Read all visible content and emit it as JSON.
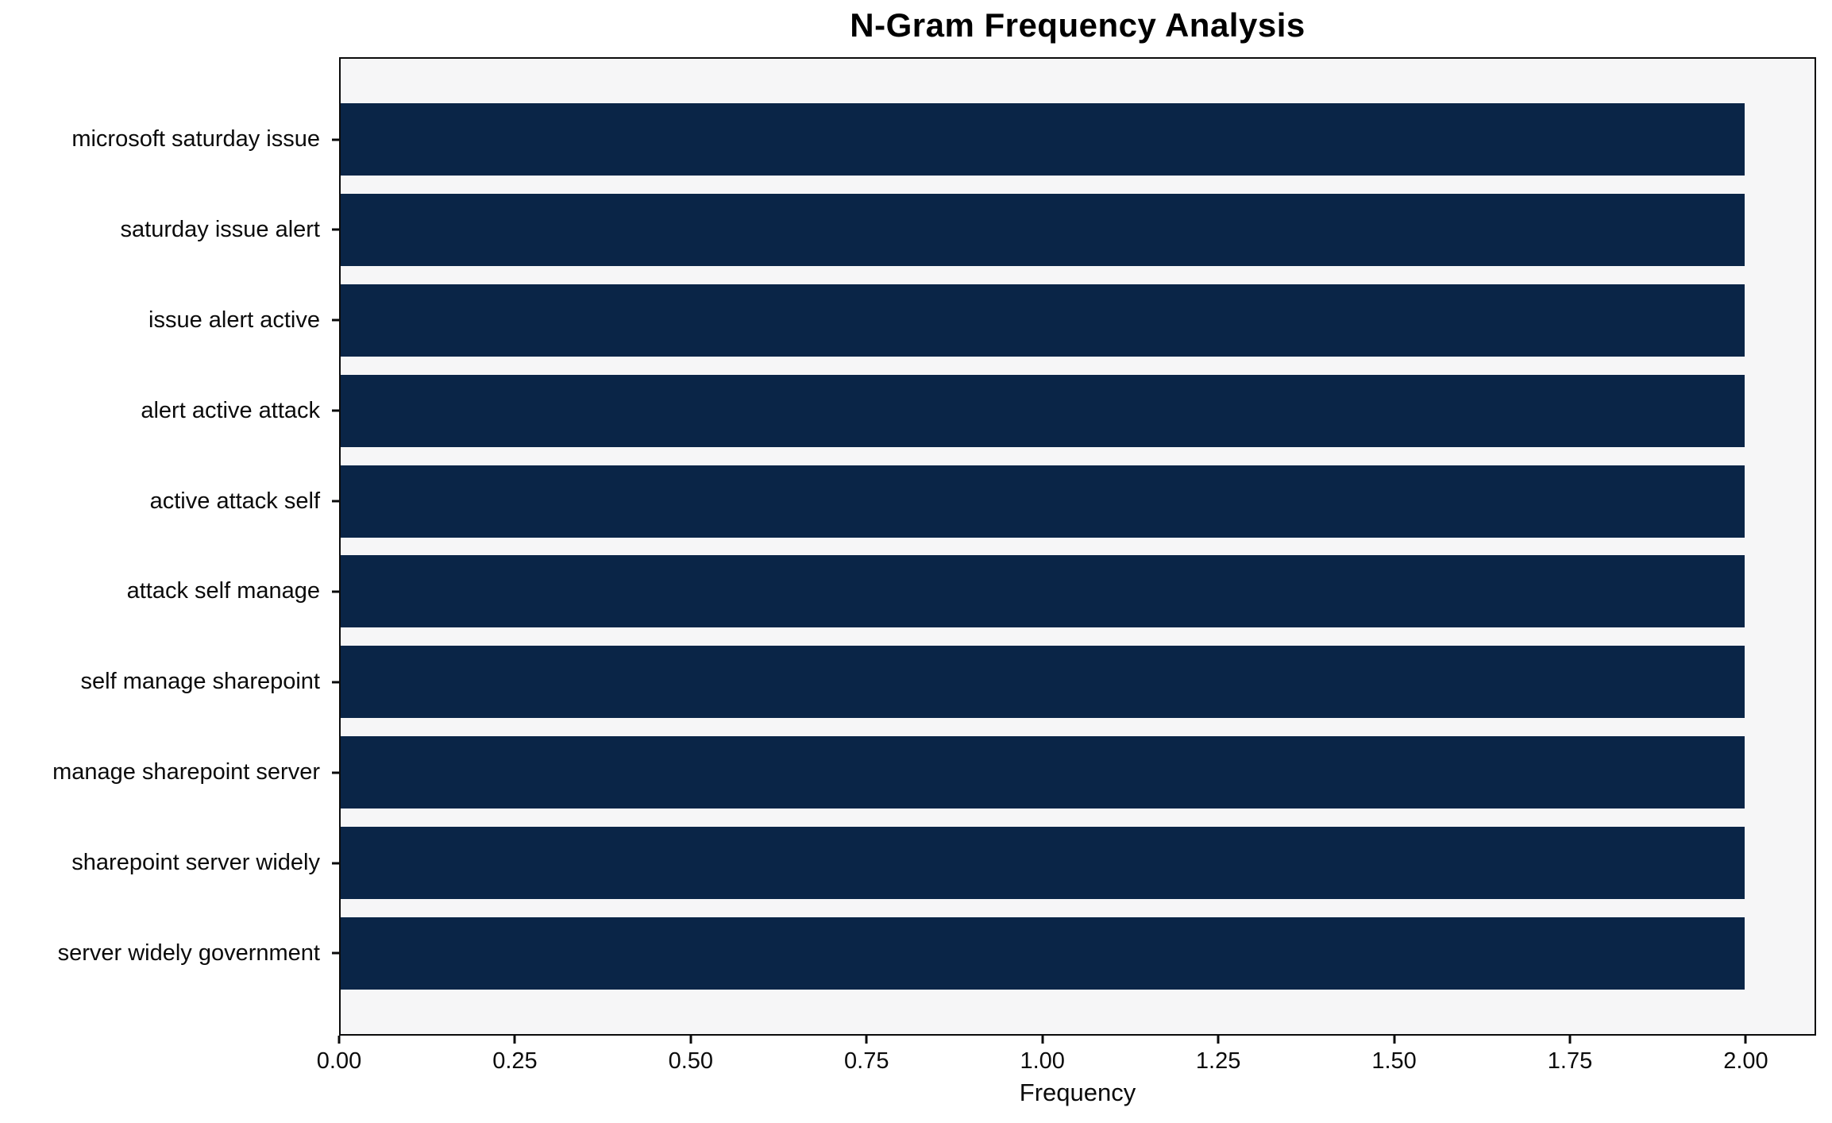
{
  "figure": {
    "background": "#ffffff"
  },
  "chart_data": {
    "type": "bar",
    "orientation": "horizontal",
    "title": "N-Gram Frequency Analysis",
    "xlabel": "Frequency",
    "ylabel": "",
    "categories": [
      "microsoft saturday issue",
      "saturday issue alert",
      "issue alert active",
      "alert active attack",
      "active attack self",
      "attack self manage",
      "self manage sharepoint",
      "manage sharepoint server",
      "sharepoint server widely",
      "server widely government"
    ],
    "values": [
      2,
      2,
      2,
      2,
      2,
      2,
      2,
      2,
      2,
      2
    ],
    "xticks": [
      {
        "value": 0.0,
        "label": "0.00"
      },
      {
        "value": 0.25,
        "label": "0.25"
      },
      {
        "value": 0.5,
        "label": "0.50"
      },
      {
        "value": 0.75,
        "label": "0.75"
      },
      {
        "value": 1.0,
        "label": "1.00"
      },
      {
        "value": 1.25,
        "label": "1.25"
      },
      {
        "value": 1.5,
        "label": "1.50"
      },
      {
        "value": 1.75,
        "label": "1.75"
      },
      {
        "value": 2.0,
        "label": "2.00"
      }
    ],
    "xlim": [
      0,
      2.1
    ],
    "grid": false,
    "legend": null,
    "bar_color": "#0a2547",
    "plot_background": "#f6f6f7",
    "axis_color": "#0b0b0b"
  }
}
